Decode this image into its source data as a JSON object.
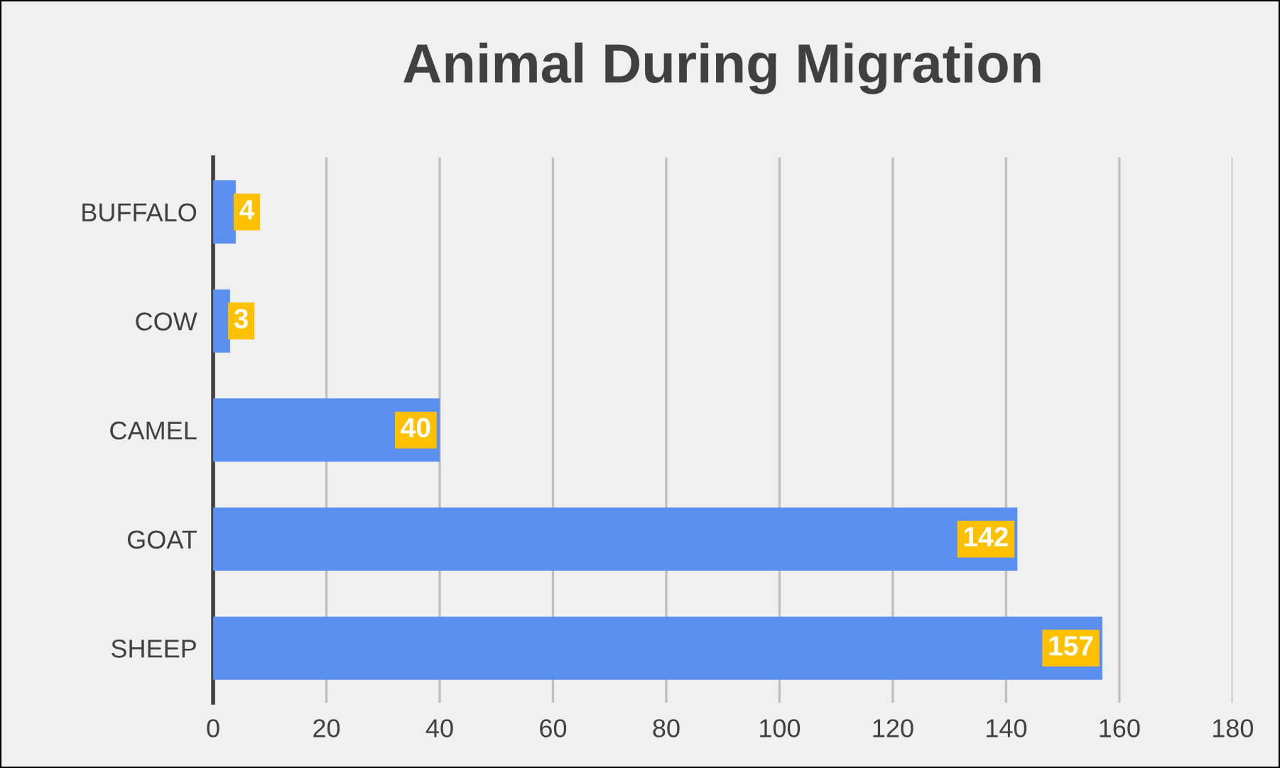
{
  "chart_data": {
    "type": "bar",
    "orientation": "horizontal",
    "title": "Animal During Migration",
    "categories": [
      "BUFFALO",
      "COW",
      "CAMEL",
      "GOAT",
      "SHEEP"
    ],
    "values": [
      4,
      3,
      40,
      142,
      157
    ],
    "color": "#5b8ff0",
    "xlim": [
      0,
      180
    ],
    "xticks": [
      0,
      20,
      40,
      60,
      80,
      100,
      120,
      140,
      160,
      180
    ],
    "grid": "x",
    "data_labels": true
  }
}
